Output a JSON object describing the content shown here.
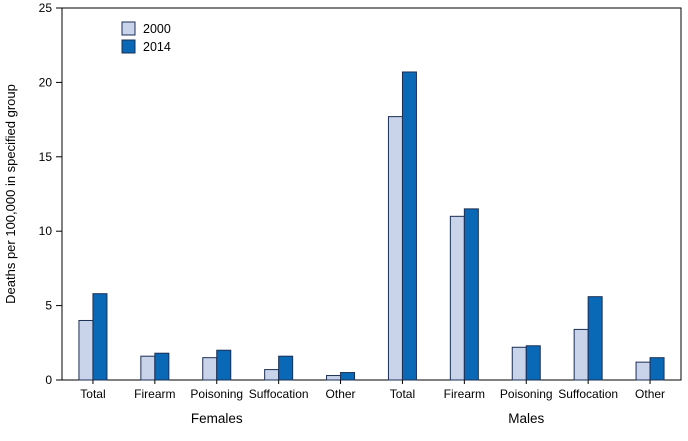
{
  "figure": {
    "background": "#ffffff"
  },
  "chart_data": {
    "type": "bar",
    "title": "",
    "ylabel": "Deaths per 100,000 in specified group",
    "xlabel": "",
    "ylim": [
      0,
      25
    ],
    "yticks": [
      0,
      5,
      10,
      15,
      20,
      25
    ],
    "grid": false,
    "legend_position": "top-left-inside",
    "frame_color": "#000000",
    "bar_outline_color": "#1b2f55",
    "groups": [
      {
        "label": "Females",
        "categories": [
          "Total",
          "Firearm",
          "Poisoning",
          "Suffocation",
          "Other"
        ]
      },
      {
        "label": "Males",
        "categories": [
          "Total",
          "Firearm",
          "Poisoning",
          "Suffocation",
          "Other"
        ]
      }
    ],
    "series": [
      {
        "name": "2000",
        "color": "#c9d3e9",
        "values": [
          [
            4.0,
            1.6,
            1.5,
            0.7,
            0.3
          ],
          [
            17.7,
            11.0,
            2.2,
            3.4,
            1.2
          ]
        ]
      },
      {
        "name": "2014",
        "color": "#0a69b7",
        "values": [
          [
            5.8,
            1.8,
            2.0,
            1.6,
            0.5
          ],
          [
            20.7,
            11.5,
            2.3,
            5.6,
            1.5
          ]
        ]
      }
    ]
  }
}
